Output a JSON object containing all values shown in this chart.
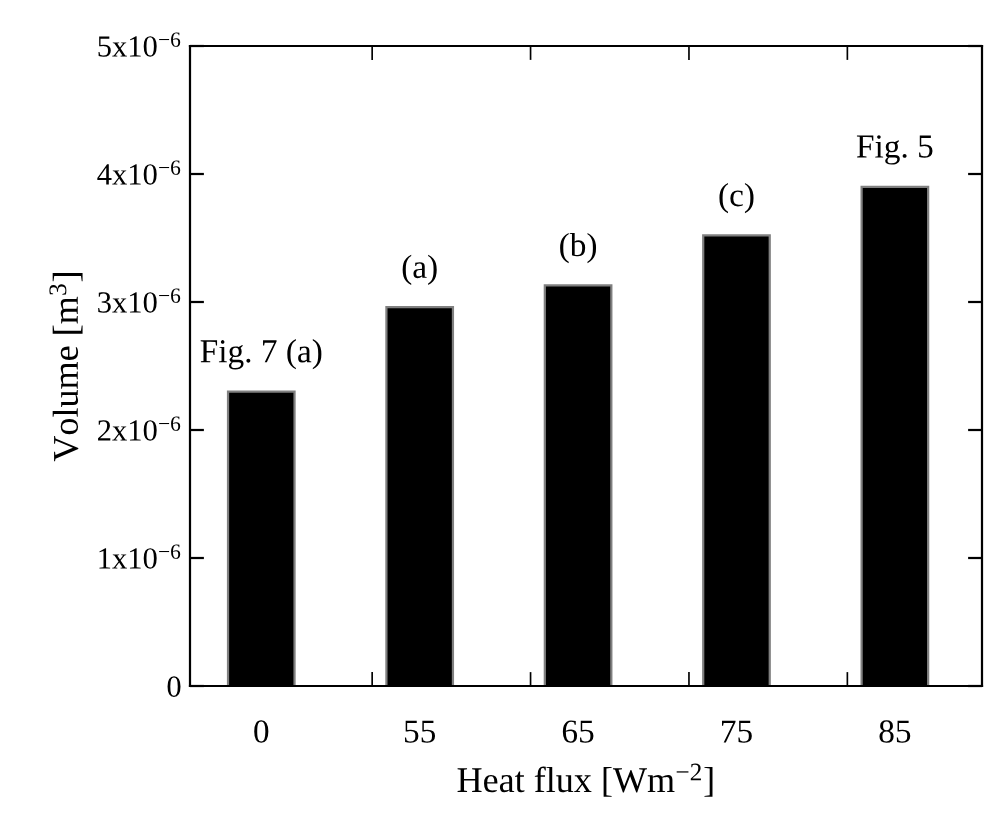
{
  "chart_data": {
    "type": "bar",
    "xlabel": "Heat flux [Wm$^{−2}$]",
    "ylabel": "Volume [m$^{3}$]",
    "categories": [
      "0",
      "55",
      "65",
      "75",
      "85"
    ],
    "values": [
      2.3e-06,
      2.96e-06,
      3.13e-06,
      3.52e-06,
      3.9e-06
    ],
    "color": "#000000",
    "ylim": [
      0,
      5e-06
    ],
    "yticks": [
      {
        "value": 0,
        "label": "0"
      },
      {
        "value": 1e-06,
        "label": "1x10$^{−6}$"
      },
      {
        "value": 2e-06,
        "label": "2x10$^{−6}$"
      },
      {
        "value": 3e-06,
        "label": "3x10$^{−6}$"
      },
      {
        "value": 4e-06,
        "label": "4x10$^{−6}$"
      },
      {
        "value": 5e-06,
        "label": "5x10$^{−6}$"
      }
    ],
    "grid": false,
    "legend": false,
    "annotations": [
      {
        "text": "Fig. 7 (a)",
        "x": "0",
        "y": 2.3e-06
      },
      {
        "text": "(a)",
        "x": "55",
        "y": 2.96e-06
      },
      {
        "text": "(b)",
        "x": "65",
        "y": 3.13e-06
      },
      {
        "text": "(c)",
        "x": "75",
        "y": 3.52e-06
      },
      {
        "text": "Fig. 5",
        "x": "85",
        "y": 3.9e-06
      }
    ]
  }
}
